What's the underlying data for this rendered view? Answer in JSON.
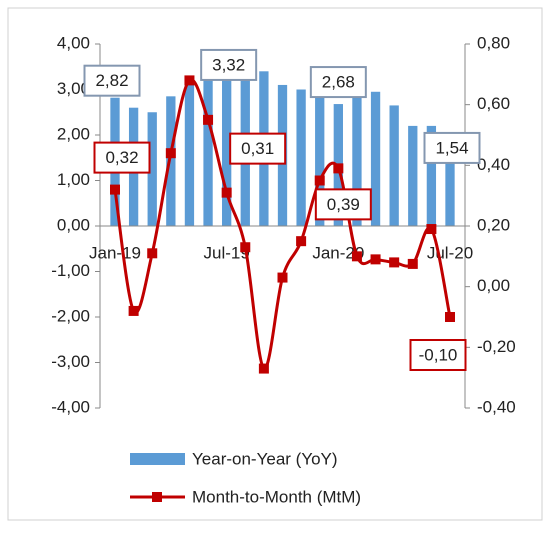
{
  "chart_data": {
    "type": "bar+line",
    "categories": [
      "Jan-19",
      null,
      null,
      null,
      null,
      null,
      "Jul-19",
      null,
      null,
      null,
      null,
      null,
      "Jan-20",
      null,
      null,
      null,
      null,
      null,
      "Jul-20"
    ],
    "series": [
      {
        "name": "Year-on-Year (YoY)",
        "type": "bar",
        "color": "#5b9bd5",
        "axis": "y",
        "values": [
          2.82,
          2.6,
          2.5,
          2.85,
          3.2,
          3.3,
          3.32,
          3.3,
          3.4,
          3.1,
          3.0,
          2.9,
          2.68,
          3.0,
          2.95,
          2.65,
          2.2,
          2.2,
          1.54
        ],
        "value_labels": [
          "2,82",
          null,
          null,
          null,
          null,
          null,
          "3,32",
          null,
          null,
          null,
          null,
          null,
          "2,68",
          null,
          null,
          null,
          null,
          null,
          "1,54"
        ]
      },
      {
        "name": "Month-to-Month (MtM)",
        "type": "line",
        "color": "#c00000",
        "axis": "y2",
        "values": [
          0.32,
          -0.08,
          0.11,
          0.44,
          0.68,
          0.55,
          0.31,
          0.13,
          -0.27,
          0.03,
          0.15,
          0.35,
          0.39,
          0.1,
          0.09,
          0.08,
          0.075,
          0.19,
          -0.1
        ],
        "value_labels": [
          "0,32",
          null,
          null,
          null,
          null,
          null,
          "0,31",
          null,
          null,
          null,
          null,
          null,
          "0,39",
          null,
          null,
          null,
          null,
          null,
          "-0,10"
        ]
      }
    ],
    "ylim": [
      -4,
      4
    ],
    "yticks": [
      {
        "value": -4,
        "label": "-4,00"
      },
      {
        "value": -3,
        "label": "-3,00"
      },
      {
        "value": -2,
        "label": "-2,00"
      },
      {
        "value": -1,
        "label": "-1,00"
      },
      {
        "value": 0,
        "label": "0,00"
      },
      {
        "value": 1,
        "label": "1,00"
      },
      {
        "value": 2,
        "label": "2,00"
      },
      {
        "value": 3,
        "label": "3,00"
      },
      {
        "value": 4,
        "label": "4,00"
      }
    ],
    "y2lim": [
      -0.4,
      0.8
    ],
    "y2ticks": [
      {
        "value": -0.4,
        "label": "-0,40"
      },
      {
        "value": -0.2,
        "label": "-0,20"
      },
      {
        "value": 0,
        "label": "0,00"
      },
      {
        "value": 0.2,
        "label": "0,20"
      },
      {
        "value": 0.4,
        "label": "0,40"
      },
      {
        "value": 0.6,
        "label": "0,60"
      },
      {
        "value": 0.8,
        "label": "0,80"
      }
    ],
    "legend": "bottom",
    "grid": false
  }
}
